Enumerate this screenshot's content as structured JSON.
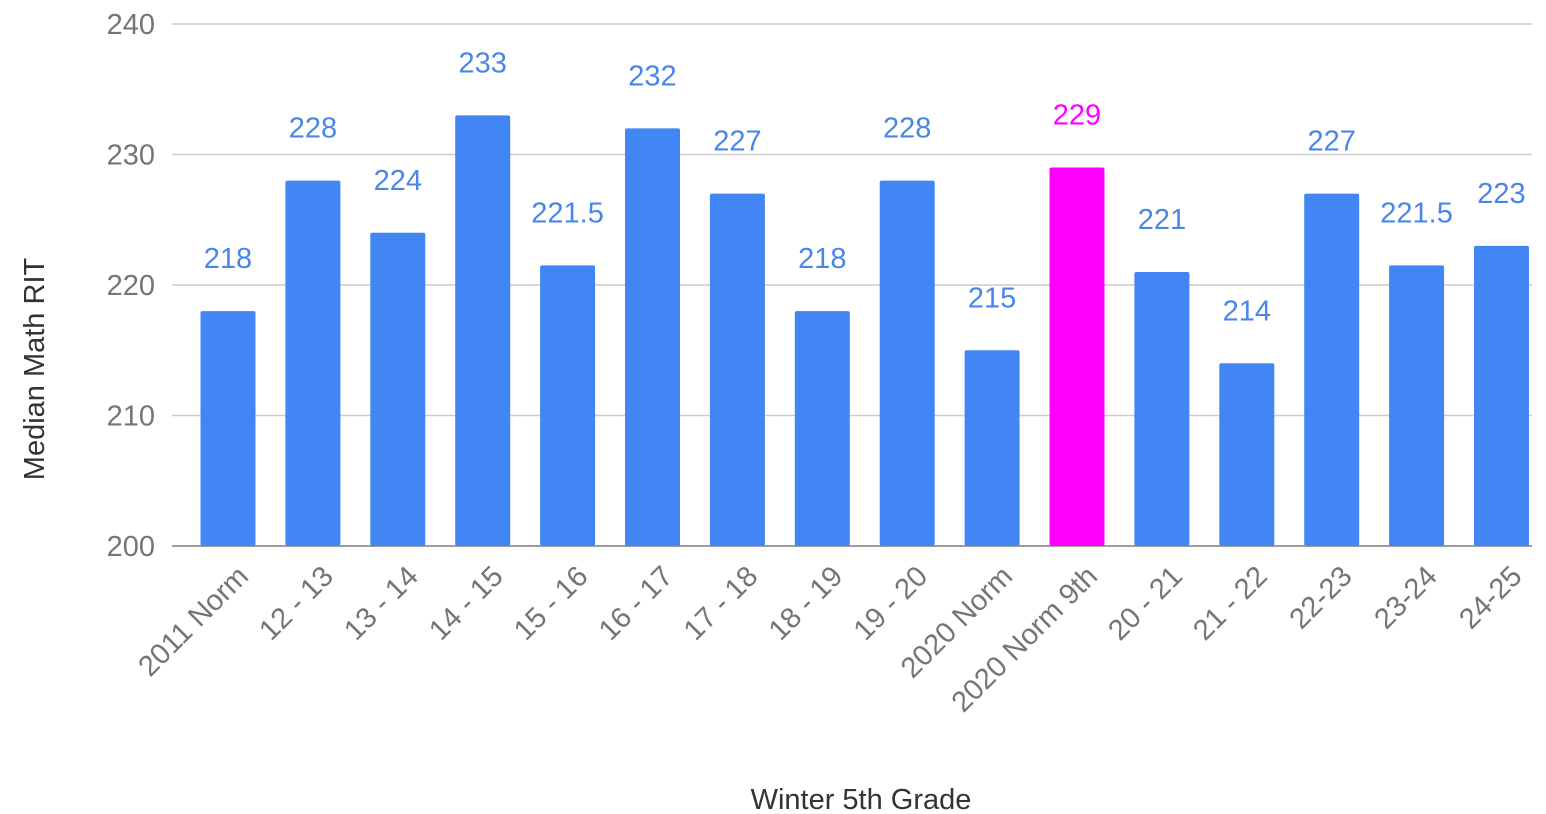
{
  "chart_data": {
    "type": "bar",
    "xlabel": "Winter 5th Grade",
    "ylabel": "Median Math RIT",
    "ylim": [
      200,
      240
    ],
    "yticks": [
      200,
      210,
      220,
      230,
      240
    ],
    "grid": true,
    "categories": [
      "2011 Norm",
      "12 - 13",
      "13 - 14",
      "14 - 15",
      "15 - 16",
      "16 - 17",
      "17 - 18",
      "18 - 19",
      "19 - 20",
      "2020 Norm",
      "2020 Norm 9th",
      "20 - 21",
      "21 - 22",
      "22-23",
      "23-24",
      "24-25"
    ],
    "values": [
      218,
      228,
      224,
      233,
      221.5,
      232,
      227,
      218,
      228,
      215,
      229,
      221,
      214,
      227,
      221.5,
      223
    ],
    "data_labels": [
      "218",
      "228",
      "224",
      "233",
      "221.5",
      "232",
      "227",
      "218",
      "228",
      "215",
      "229",
      "221",
      "214",
      "227",
      "221.5",
      "223"
    ],
    "highlight_index": 10,
    "colors": {
      "bar": "#4285f4",
      "highlight": "#ff00ff",
      "label": "#4a86e8",
      "highlight_label": "#ff00ff",
      "grid": "#cccccc",
      "tick": "#757575",
      "axis_title": "#333333"
    }
  }
}
